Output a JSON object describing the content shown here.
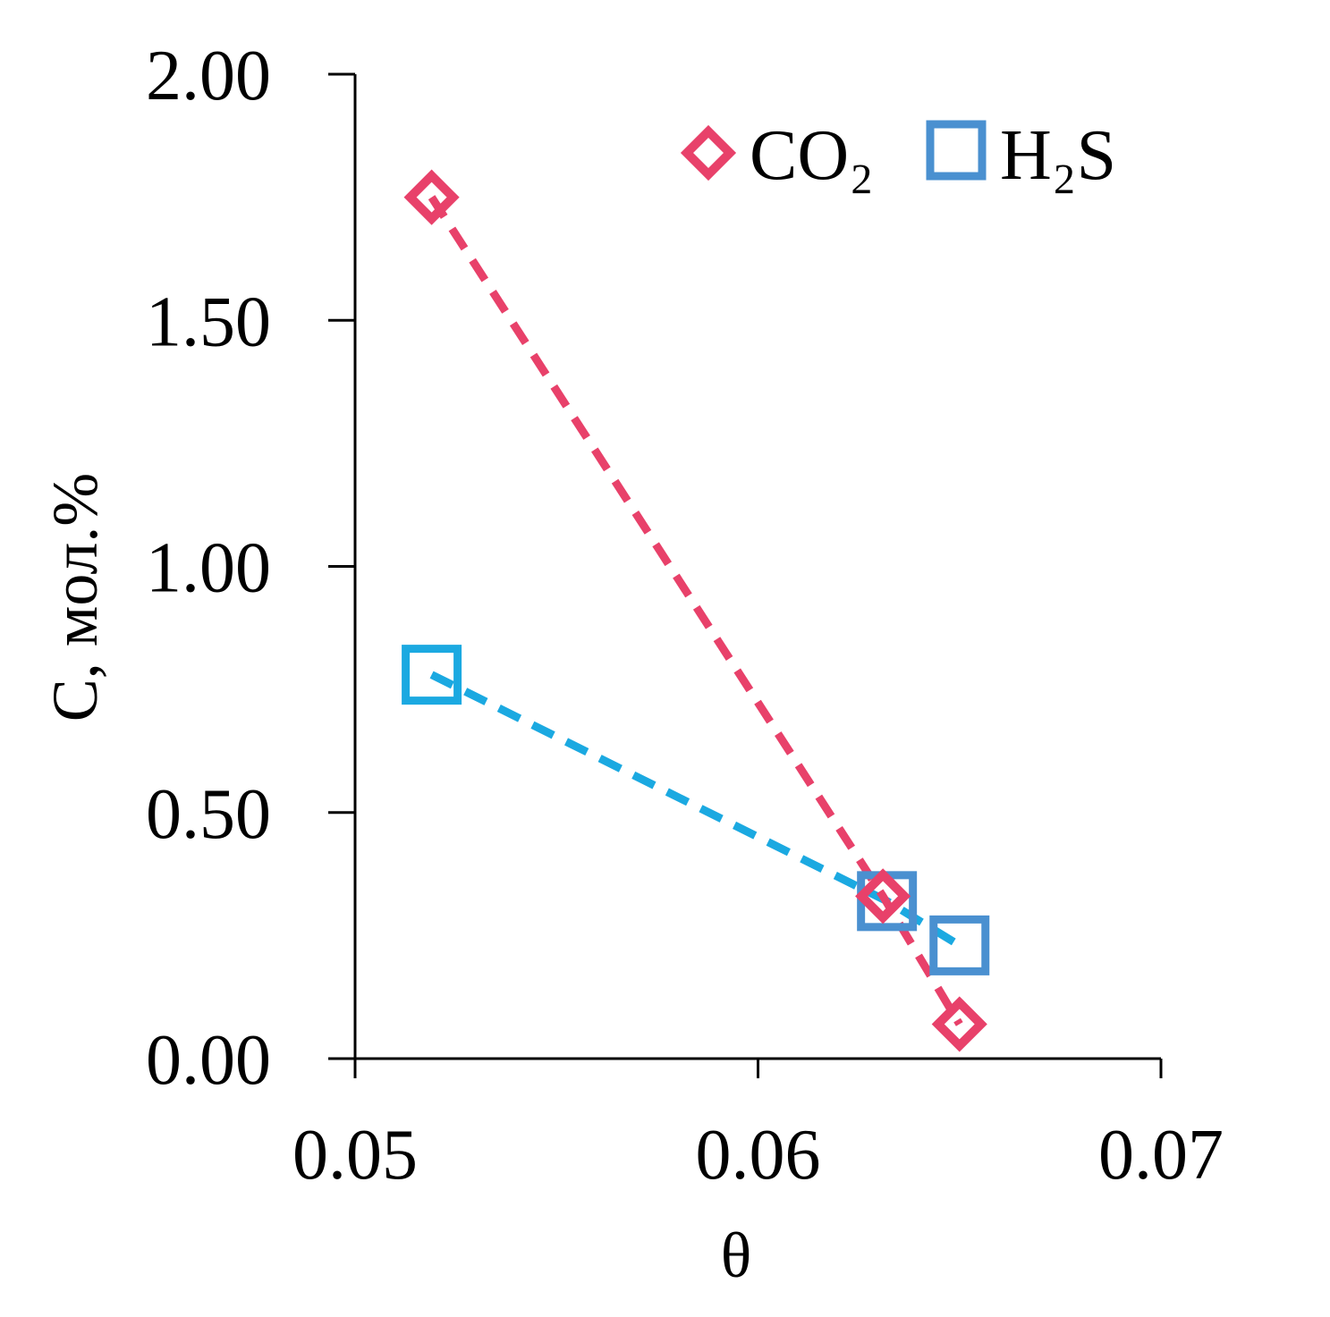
{
  "chart_data": {
    "type": "line",
    "xlabel": "θ",
    "ylabel": "C, мол.%",
    "xlim": [
      0.05,
      0.07
    ],
    "ylim": [
      0.0,
      2.0
    ],
    "x_ticks": [
      "0.05",
      "0.06",
      "0.07"
    ],
    "x_tick_values": [
      0.05,
      0.06,
      0.07
    ],
    "y_ticks": [
      "0.00",
      "0.50",
      "1.00",
      "1.50",
      "2.00"
    ],
    "y_tick_values": [
      0.0,
      0.5,
      1.0,
      1.5,
      2.0
    ],
    "grid": false,
    "legend_placement": "top-right",
    "series": [
      {
        "name": "CO₂",
        "marker": "diamond",
        "line": "dashed",
        "color": "#e8416a",
        "x": [
          0.0519,
          0.0631,
          0.065
        ],
        "y": [
          1.75,
          0.33,
          0.07
        ]
      },
      {
        "name": "H₂S",
        "marker": "square",
        "line": "dashed",
        "color": "#4a90d0",
        "line_color": "#1ba9e1",
        "x": [
          0.0519,
          0.0632,
          0.065
        ],
        "y": [
          0.78,
          0.32,
          0.23
        ]
      }
    ]
  }
}
